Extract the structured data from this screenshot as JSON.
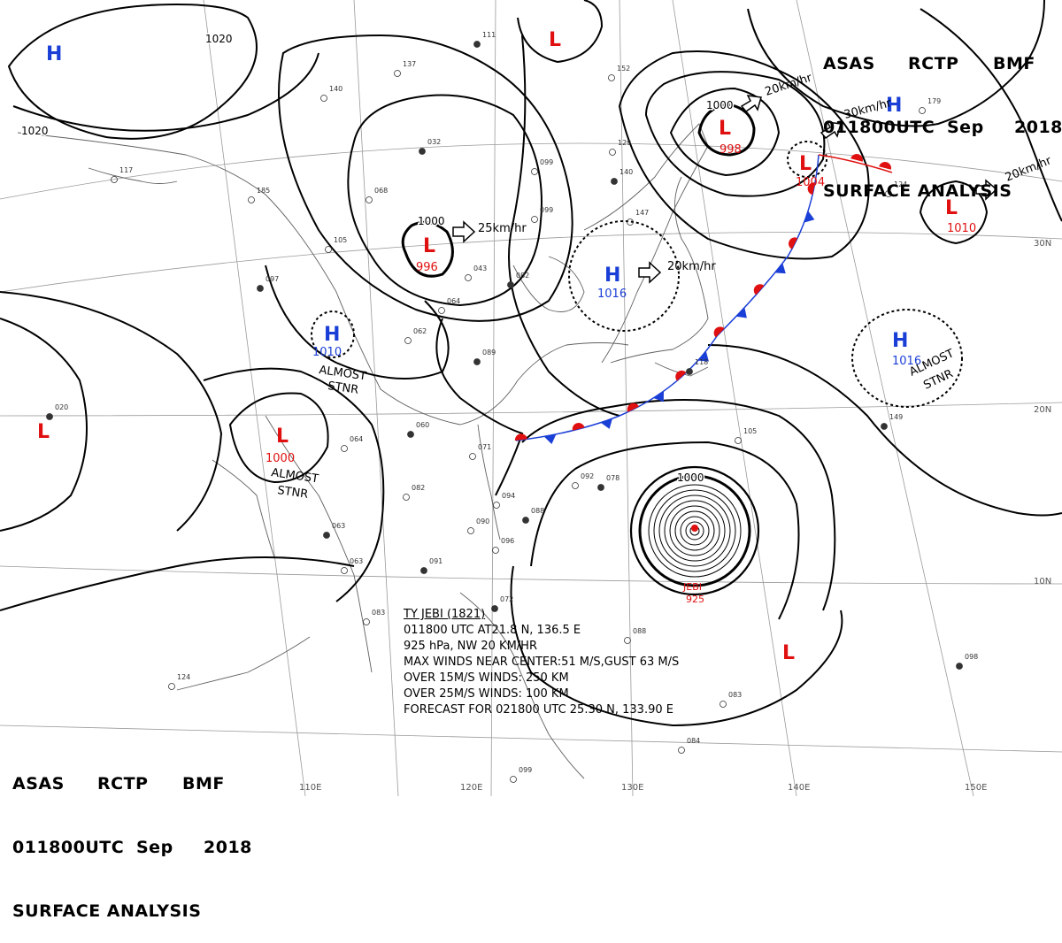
{
  "header": {
    "agency_a": "ASAS",
    "agency_b": "RCTP",
    "agency_c": "BMF",
    "time": "011800UTC",
    "month": "Sep",
    "year": "2018",
    "title": "SURFACE ANALYSIS"
  },
  "isobar_labels": [
    "1020",
    "1020",
    "1000",
    "1000",
    "1000"
  ],
  "pressure_centers": [
    {
      "type": "H",
      "value": "",
      "color": "#1a3fd6"
    },
    {
      "type": "L",
      "value": "",
      "color": "#e01010"
    },
    {
      "type": "L",
      "value": "996",
      "color": "#e01010"
    },
    {
      "type": "H",
      "value": "1010",
      "color": "#1a3fd6"
    },
    {
      "type": "L",
      "value": "1000",
      "color": "#e01010"
    },
    {
      "type": "L",
      "value": "",
      "color": "#e01010"
    },
    {
      "type": "H",
      "value": "1016",
      "color": "#1a3fd6"
    },
    {
      "type": "L",
      "value": "998",
      "color": "#e01010"
    },
    {
      "type": "L",
      "value": "1004",
      "color": "#e01010"
    },
    {
      "type": "H",
      "value": "",
      "color": "#1a3fd6"
    },
    {
      "type": "L",
      "value": "1010",
      "color": "#e01010"
    },
    {
      "type": "H",
      "value": "1016",
      "color": "#1a3fd6"
    },
    {
      "type": "L",
      "value": "",
      "color": "#e01010"
    }
  ],
  "motion_labels": [
    "25km/hr",
    "20km/hr",
    "20km/hr",
    "30km/hr",
    "20km/hr"
  ],
  "stationary_labels": [
    {
      "line1": "ALMOST",
      "line2": "STNR"
    },
    {
      "line1": "ALMOST",
      "line2": "STNR"
    },
    {
      "line1": "ALMOST",
      "line2": "STNR"
    }
  ],
  "typhoon": {
    "name": "JEBI",
    "pressure": "925",
    "info": [
      "TY JEBI (1821)",
      "011800 UTC AT21.8 N, 136.5 E",
      "925 hPa, NW 20 KM/HR",
      "MAX WINDS NEAR CENTER:51 M/S,GUST 63 M/S",
      "OVER 15M/S WINDS: 250 KM",
      "OVER 25M/S WINDS: 100 KM",
      "FORECAST FOR 021800 UTC 25.30 N, 133.90 E"
    ]
  },
  "longitude_labels": [
    "110E",
    "120E",
    "130E",
    "140E",
    "150E"
  ],
  "latitude_labels": [
    "30N",
    "20N",
    "10N"
  ],
  "station_values": [
    "111",
    "137",
    "140",
    "032",
    "068",
    "105",
    "097",
    "064",
    "062",
    "060",
    "064",
    "082",
    "089",
    "071",
    "043",
    "082",
    "099",
    "129",
    "140",
    "147",
    "152",
    "118",
    "105",
    "099",
    "078",
    "092",
    "094",
    "088",
    "090",
    "096",
    "091",
    "083",
    "088",
    "098",
    "083",
    "084",
    "149",
    "124",
    "179",
    "020",
    "185",
    "117",
    "063",
    "063",
    "099",
    "072",
    "124"
  ],
  "colors": {
    "front_warm": "#e01010",
    "front_cold": "#1a3fd6",
    "isobar": "#000000",
    "grid": "#8a8a8a",
    "coast": "#555555"
  }
}
